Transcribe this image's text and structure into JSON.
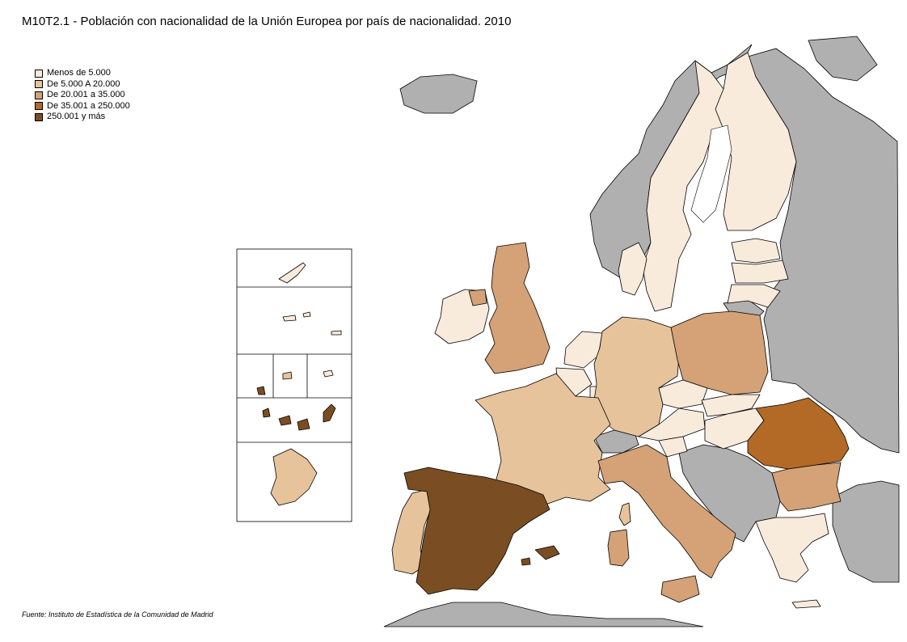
{
  "map": {
    "title": "M10T2.1 - Población con nacionalidad de la Unión Europea por país de nacionalidad. 2010",
    "source": "Fuente: Instituto de Estadística de la Comunidad de Madrid",
    "legend": [
      {
        "label": "Menos de 5.000",
        "color": "#f8ebdc"
      },
      {
        "label": "De 5.000 A 20.000",
        "color": "#e7c39b"
      },
      {
        "label": "De 20.001 a 35.000",
        "color": "#d4a276"
      },
      {
        "label": "De 35.001 a 250.000",
        "color": "#b36a26"
      },
      {
        "label": "250.001 y  más",
        "color": "#7a4e22"
      }
    ],
    "non_eu_color": "#b0b0b0",
    "regions": [
      {
        "name": "España",
        "class": "250.001 y  más"
      },
      {
        "name": "Rumanía",
        "class": "De 35.001 a 250.000"
      },
      {
        "name": "Polonia",
        "class": "De 20.001 a 35.000"
      },
      {
        "name": "Italia",
        "class": "De 20.001 a 35.000"
      },
      {
        "name": "Bulgaria",
        "class": "De 20.001 a 35.000"
      },
      {
        "name": "Reino Unido",
        "class": "De 20.001 a 35.000"
      },
      {
        "name": "Francia",
        "class": "De 5.000 A 20.000"
      },
      {
        "name": "Alemania",
        "class": "De 5.000 A 20.000"
      },
      {
        "name": "Portugal",
        "class": "De 5.000 A 20.000"
      },
      {
        "name": "Irlanda",
        "class": "Menos de 5.000"
      },
      {
        "name": "Suecia",
        "class": "Menos de 5.000"
      },
      {
        "name": "Finlandia",
        "class": "Menos de 5.000"
      }
    ]
  }
}
